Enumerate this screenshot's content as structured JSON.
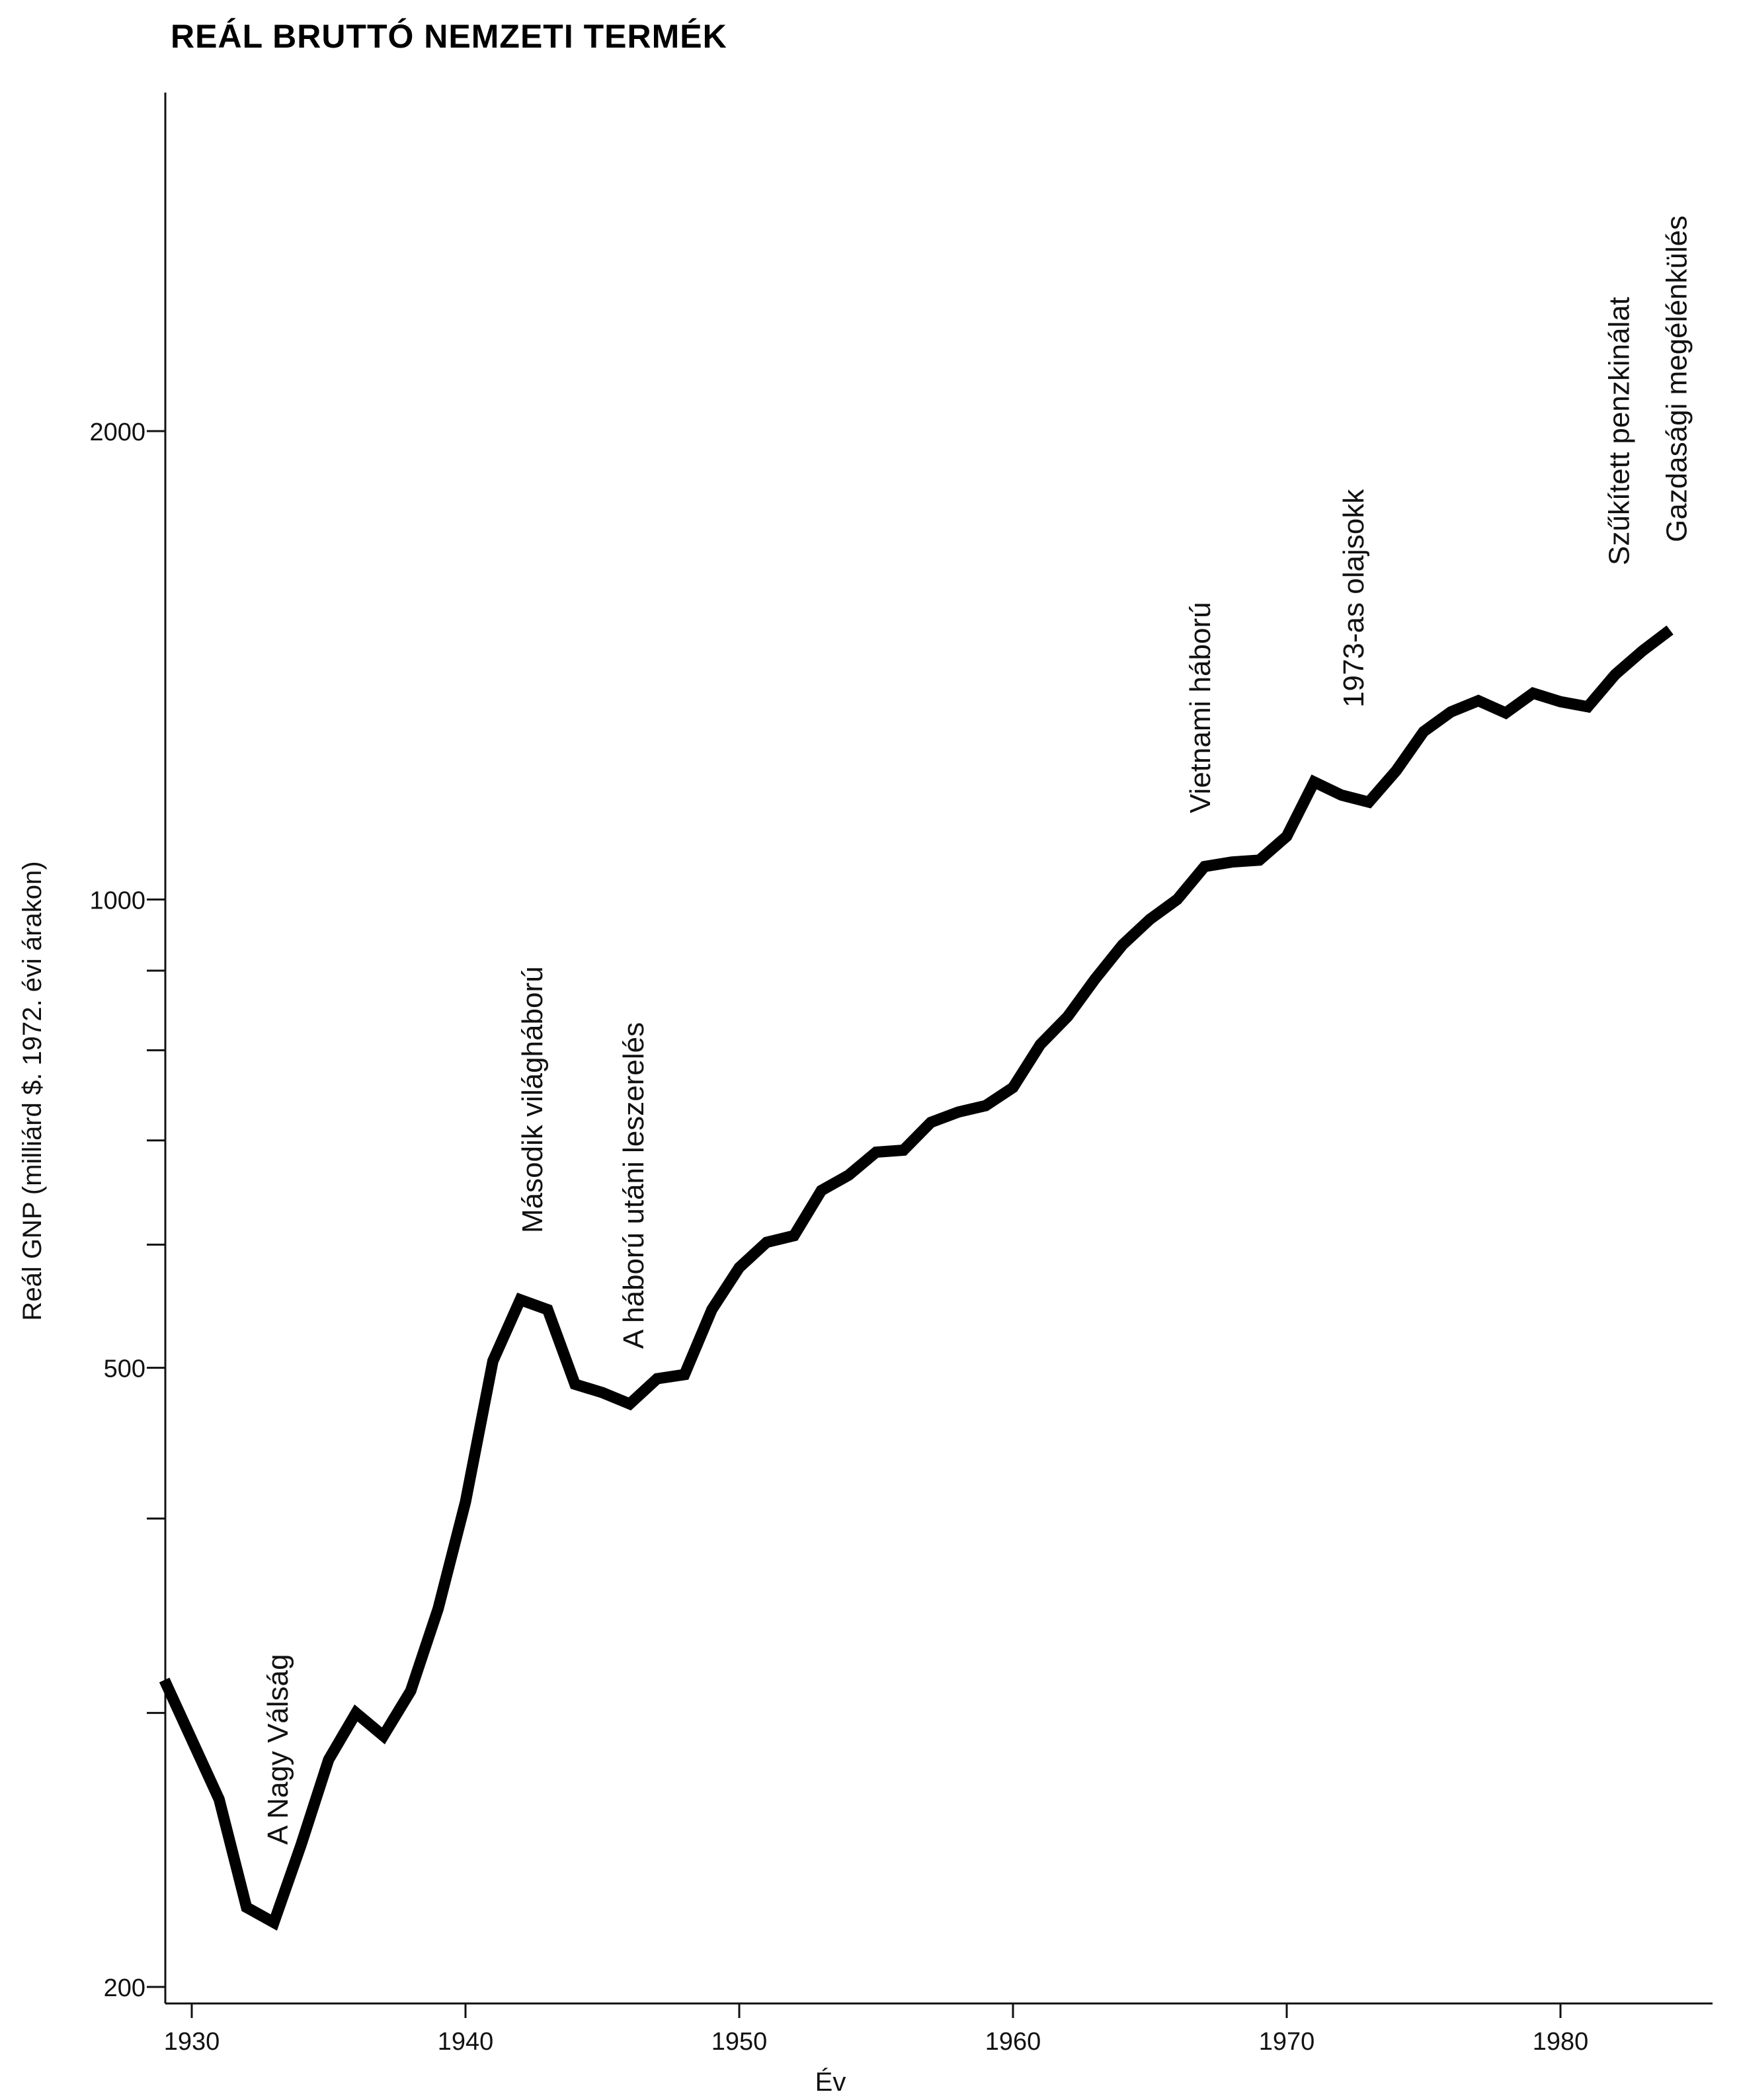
{
  "chart_data": {
    "type": "line",
    "title": "REÁL BRUTTÓ NEMZETI TERMÉK",
    "xlabel": "Év",
    "ylabel": "Reál GNP (milliárd $. 1972. évi árakon)",
    "yscale": "log",
    "xlim": [
      1929,
      1985
    ],
    "ylim": [
      200,
      3000
    ],
    "grid": false,
    "x_ticks": [
      1930,
      1940,
      1950,
      1960,
      1970,
      1980
    ],
    "x_tick_labels": [
      "1930",
      "1940",
      "1950",
      "1960",
      "1970",
      "1980"
    ],
    "y_ticks": [
      200,
      300,
      400,
      500,
      600,
      700,
      800,
      900,
      1000,
      2000
    ],
    "y_tick_labels": [
      "200",
      "",
      "",
      "500",
      "",
      "",
      "",
      "",
      "1000",
      "2000"
    ],
    "series": [
      {
        "x": [
          1929,
          1931,
          1932,
          1933,
          1934,
          1935,
          1936,
          1937,
          1938,
          1939,
          1940,
          1941,
          1942,
          1943,
          1944,
          1945,
          1946,
          1947,
          1948,
          1949,
          1950,
          1951,
          1952,
          1953,
          1954,
          1955,
          1956,
          1957,
          1958,
          1959,
          1960,
          1961,
          1962,
          1963,
          1964,
          1965,
          1966,
          1967,
          1968,
          1969,
          1970,
          1971,
          1972,
          1973,
          1974,
          1975,
          1976,
          1977,
          1978,
          1979,
          1980,
          1981,
          1982,
          1983,
          1984
        ],
        "y": [
          315,
          264,
          225,
          220,
          247,
          280,
          300,
          290,
          310,
          350,
          410,
          505,
          553,
          545,
          488,
          482,
          474,
          492,
          495,
          545,
          580,
          602,
          608,
          650,
          665,
          688,
          690,
          719,
          730,
          737,
          757,
          807,
          841,
          889,
          935,
          971,
          1000,
          1050,
          1057,
          1060,
          1098,
          1190,
          1167,
          1155,
          1210,
          1282,
          1320,
          1342,
          1318,
          1357,
          1340,
          1330,
          1395,
          1445,
          1490
        ]
      }
    ],
    "annotations": [
      {
        "text": "A Nagy Válság",
        "x": 1933.5
      },
      {
        "text": "Második világháború",
        "x": 1942.8
      },
      {
        "text": "A háború utáni leszerelés",
        "x": 1946.5
      },
      {
        "text": "Vietnami háború",
        "x": 1967.2
      },
      {
        "text": "1973-as olajsokk",
        "x": 1972.8
      },
      {
        "text": "Szűkített penzkinálat",
        "x": 1982.5
      },
      {
        "text": "Gazdasági megélénkülés",
        "x": 1984.6
      }
    ]
  }
}
